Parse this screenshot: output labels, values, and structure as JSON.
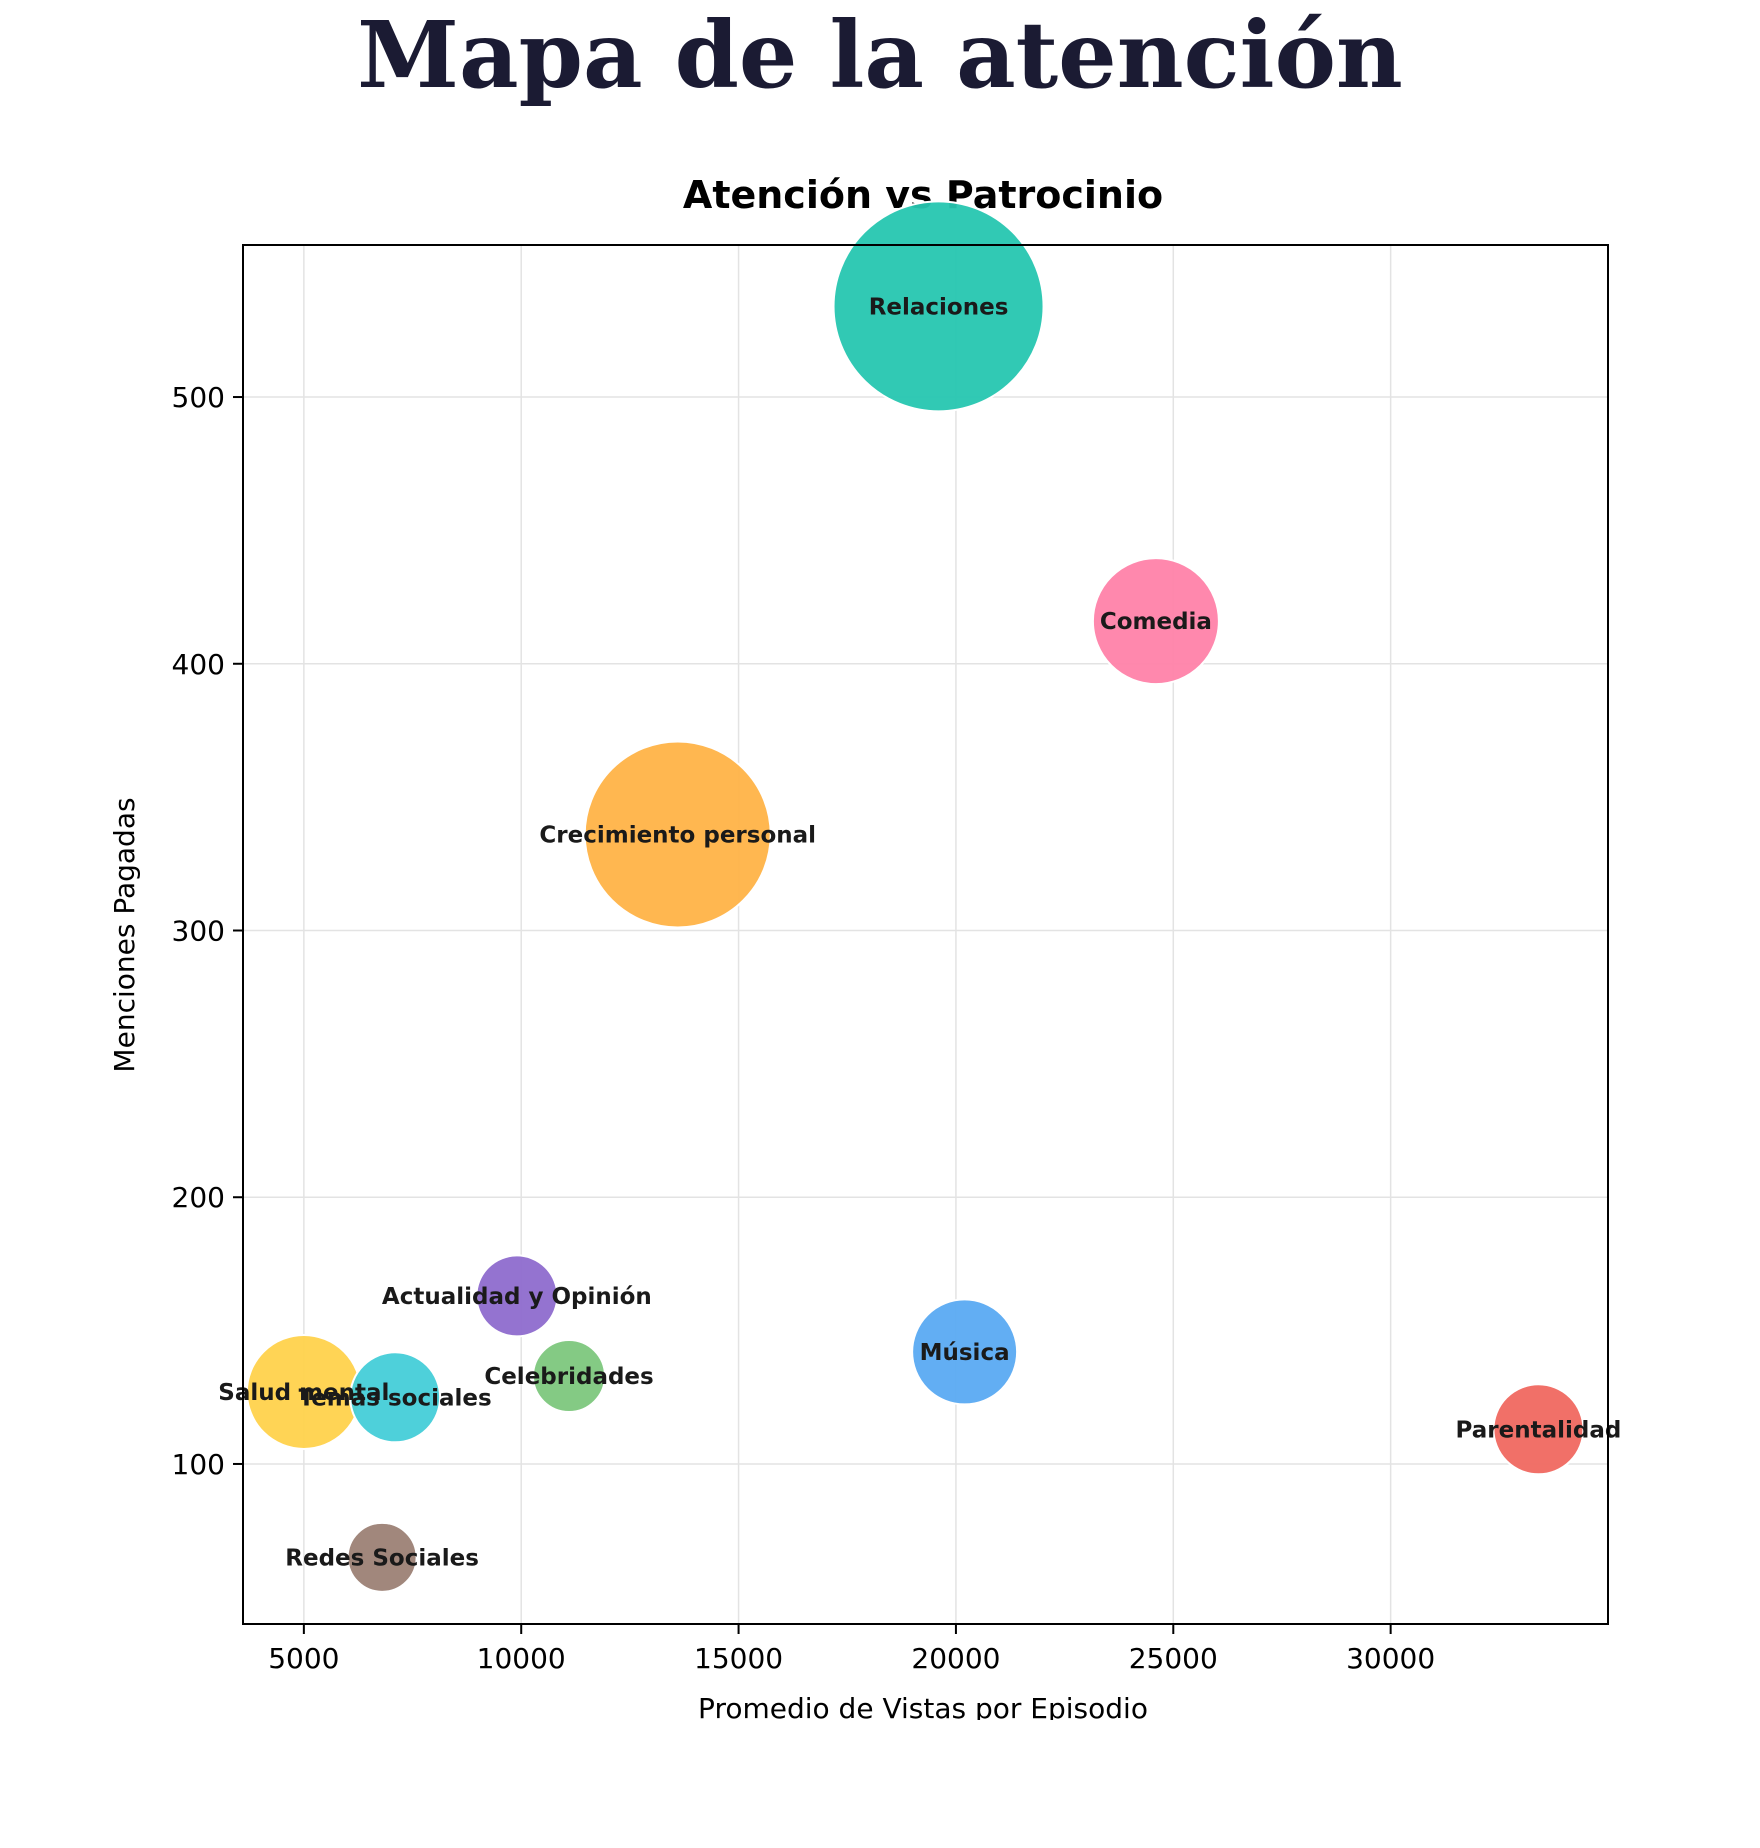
{
  "page": {
    "title": "Mapa de la atención"
  },
  "colors": {
    "axis": "#000000",
    "grid": "#e3e3e3",
    "label": "#1a1a1a"
  },
  "chart_data": {
    "type": "scatter",
    "title": "Atención vs Patrocinio",
    "xlabel": "Promedio de Vistas por Episodio",
    "ylabel": "Menciones Pagadas",
    "xlim": [
      3600,
      35000
    ],
    "ylim": [
      40,
      557
    ],
    "grid": true,
    "xticks": [
      5000,
      10000,
      15000,
      20000,
      25000,
      30000
    ],
    "yticks": [
      100,
      200,
      300,
      400,
      500
    ],
    "points": [
      {
        "label": "Relaciones",
        "x": 19600,
        "y": 534,
        "size": 70,
        "color": "#26c6b0"
      },
      {
        "label": "Comedia",
        "x": 24600,
        "y": 416,
        "size": 42,
        "color": "#ff82a9"
      },
      {
        "label": "Crecimiento personal",
        "x": 13600,
        "y": 336,
        "size": 62,
        "color": "#ffb347"
      },
      {
        "label": "Actualidad y Opinión",
        "x": 9900,
        "y": 163,
        "size": 27,
        "color": "#8e6bce"
      },
      {
        "label": "Celebridades",
        "x": 11100,
        "y": 133,
        "size": 24,
        "color": "#7dc77d"
      },
      {
        "label": "Música",
        "x": 20200,
        "y": 142,
        "size": 35,
        "color": "#5aaaf2"
      },
      {
        "label": "Salud mental",
        "x": 5000,
        "y": 127,
        "size": 38,
        "color": "#ffd24c"
      },
      {
        "label": "Temas sociales",
        "x": 7100,
        "y": 125,
        "size": 30,
        "color": "#45cdd8"
      },
      {
        "label": "Parentalidad",
        "x": 33400,
        "y": 113,
        "size": 30,
        "color": "#f06860"
      },
      {
        "label": "Redes Sociales",
        "x": 6800,
        "y": 65,
        "size": 23,
        "color": "#9c8175"
      }
    ]
  }
}
